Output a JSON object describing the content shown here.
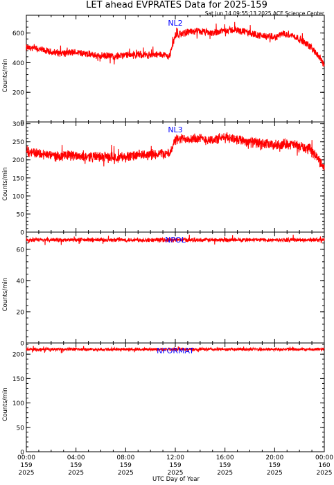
{
  "header": {
    "title": "LET ahead EVPRATES Data for 2025-159",
    "timestamp": "Sat Jun 14 09:55:13 2025 ACE Science Center"
  },
  "xaxis_label": "UTC Day of Year",
  "colors": {
    "series": "#ff0000",
    "panel_label": "#0000ff",
    "axes": "#000000"
  },
  "chart_data": [
    {
      "type": "line",
      "series_name": "NL2",
      "ylabel": "Counts/min",
      "ylim": [
        0,
        720
      ],
      "yticks": [
        0,
        200,
        400,
        600
      ],
      "x_range_hours": [
        0,
        24
      ],
      "profile": [
        [
          0,
          500
        ],
        [
          1,
          490
        ],
        [
          2,
          470
        ],
        [
          3,
          465
        ],
        [
          4,
          470
        ],
        [
          5,
          455
        ],
        [
          6,
          445
        ],
        [
          7,
          445
        ],
        [
          8,
          450
        ],
        [
          9,
          455
        ],
        [
          10,
          450
        ],
        [
          11,
          455
        ],
        [
          11.5,
          440
        ],
        [
          12,
          580
        ],
        [
          13,
          610
        ],
        [
          14,
          610
        ],
        [
          15,
          600
        ],
        [
          16,
          620
        ],
        [
          17,
          620
        ],
        [
          18,
          600
        ],
        [
          19,
          580
        ],
        [
          20,
          570
        ],
        [
          20.8,
          600
        ],
        [
          21.5,
          580
        ],
        [
          22,
          560
        ],
        [
          23,
          500
        ],
        [
          24,
          390
        ]
      ],
      "noise": 22
    },
    {
      "type": "line",
      "series_name": "NL3",
      "ylabel": "Counts/min",
      "ylim": [
        0,
        305
      ],
      "yticks": [
        0,
        50,
        100,
        150,
        200,
        250,
        300
      ],
      "x_range_hours": [
        0,
        24
      ],
      "profile": [
        [
          0,
          225
        ],
        [
          1,
          218
        ],
        [
          2,
          212
        ],
        [
          3,
          210
        ],
        [
          4,
          212
        ],
        [
          5,
          210
        ],
        [
          6,
          208
        ],
        [
          7,
          208
        ],
        [
          8,
          208
        ],
        [
          9,
          212
        ],
        [
          10,
          215
        ],
        [
          11,
          218
        ],
        [
          11.5,
          215
        ],
        [
          12,
          255
        ],
        [
          13,
          260
        ],
        [
          14,
          258
        ],
        [
          15,
          255
        ],
        [
          16,
          262
        ],
        [
          17,
          258
        ],
        [
          18,
          250
        ],
        [
          19,
          245
        ],
        [
          20,
          240
        ],
        [
          21,
          245
        ],
        [
          22,
          238
        ],
        [
          23,
          225
        ],
        [
          24,
          180
        ]
      ],
      "noise": 13
    },
    {
      "type": "line",
      "series_name": "NPOL",
      "ylabel": "Counts/min",
      "ylim": [
        0,
        71
      ],
      "yticks": [
        0,
        20,
        40,
        60
      ],
      "x_range_hours": [
        0,
        24
      ],
      "profile": [
        [
          0,
          66
        ],
        [
          24,
          66
        ]
      ],
      "noise": 1.2
    },
    {
      "type": "line",
      "series_name": "NFORMAT",
      "ylabel": "Counts/min",
      "ylim": [
        0,
        223
      ],
      "yticks": [
        0,
        50,
        100,
        150,
        200
      ],
      "x_range_hours": [
        0,
        24
      ],
      "profile": [
        [
          0,
          210
        ],
        [
          24,
          210
        ]
      ],
      "noise": 3
    }
  ],
  "xticks": [
    {
      "time": "00:00",
      "doy": "159",
      "year": "2025"
    },
    {
      "time": "04:00",
      "doy": "159",
      "year": "2025"
    },
    {
      "time": "08:00",
      "doy": "159",
      "year": "2025"
    },
    {
      "time": "12:00",
      "doy": "159",
      "year": "2025"
    },
    {
      "time": "16:00",
      "doy": "159",
      "year": "2025"
    },
    {
      "time": "20:00",
      "doy": "159",
      "year": "2025"
    },
    {
      "time": "00:00",
      "doy": "160",
      "year": "2025"
    }
  ]
}
